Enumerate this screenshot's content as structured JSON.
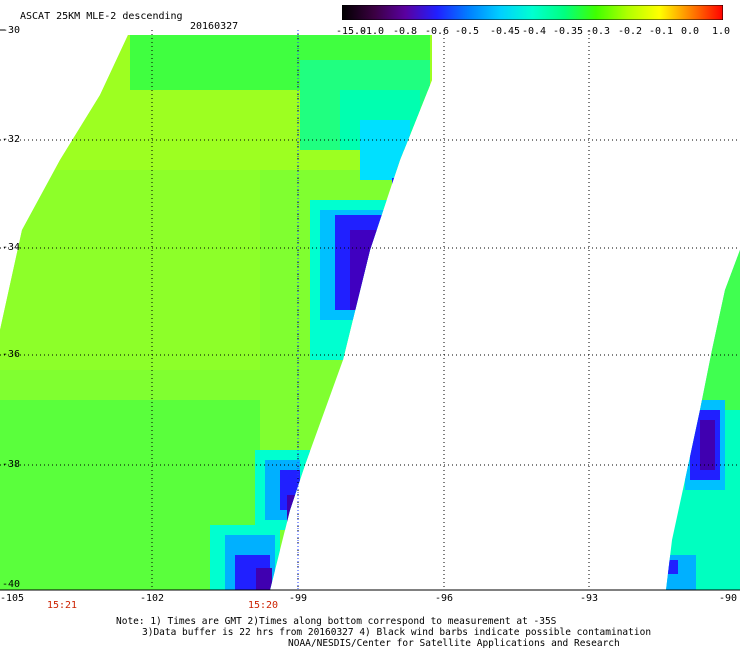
{
  "header": {
    "title": "ASCAT 25KM MLE-2 descending",
    "date": "20160327"
  },
  "colorbar": {
    "labels": [
      "-15.0",
      "-1.0",
      "-0.8",
      "-0.6",
      "-0.5",
      "-0.45",
      "-0.4",
      "-0.35",
      "-0.3",
      "-0.2",
      "-0.1",
      "0.0",
      "1.0"
    ],
    "colors": [
      "#000000",
      "#3a0040",
      "#5a00a0",
      "#2020ff",
      "#0080ff",
      "#00d0ff",
      "#00ffd0",
      "#00ff80",
      "#40ff00",
      "#b0ff00",
      "#ffff00",
      "#ff8000",
      "#ff0000"
    ]
  },
  "axes": {
    "lat_labels": [
      "-30",
      "-32",
      "-34",
      "-36",
      "-38",
      "-40"
    ],
    "lon_labels": [
      "-105",
      "-102",
      "-99",
      "-96",
      "-93",
      "-90"
    ]
  },
  "times": [
    "15:21",
    "15:20"
  ],
  "notes": {
    "line1": "Note: 1) Times are GMT 2)Times along bottom correspond to measurement at -35S",
    "line2": "3)Data buffer is 22 hrs from 20160327 4) Black wind barbs indicate possible contamination",
    "line3": "NOAA/NESDIS/Center for Satellite Applications and Research"
  }
}
